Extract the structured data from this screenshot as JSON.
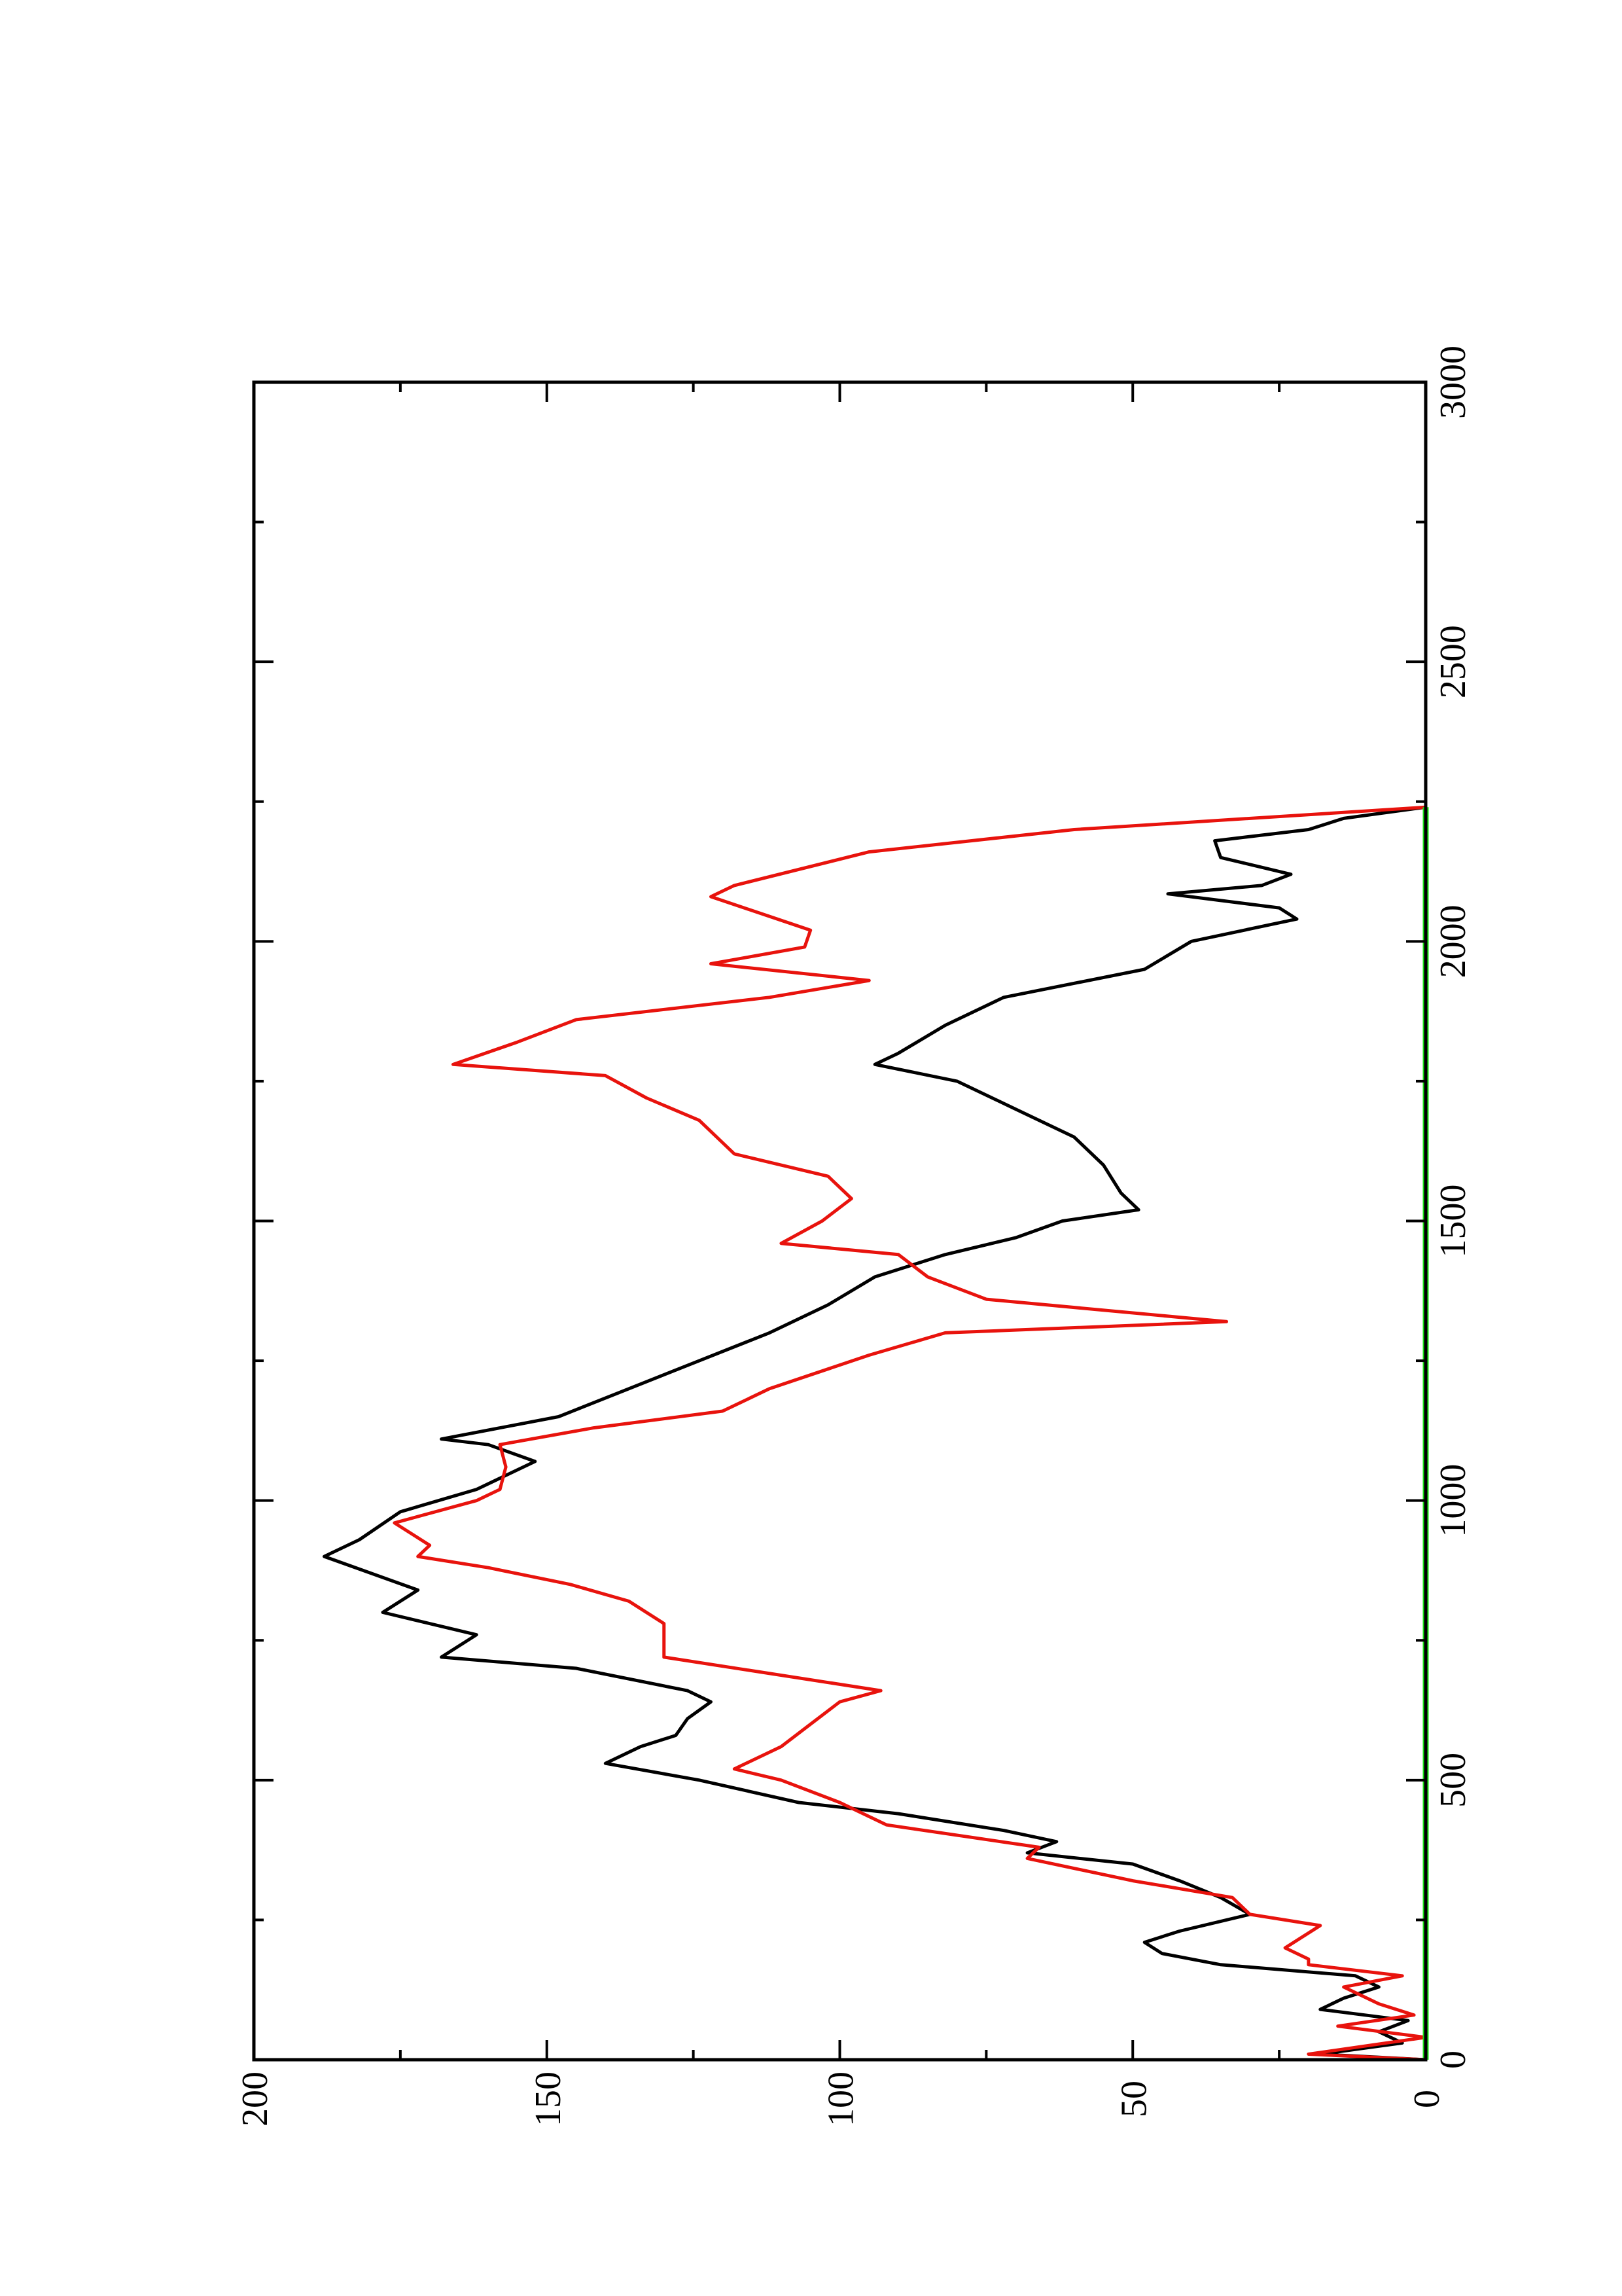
{
  "chart_data": {
    "type": "line",
    "orientation": "rotated-90-ccw",
    "xlim": [
      0,
      3000
    ],
    "ylim": [
      0,
      200
    ],
    "x_major_ticks": [
      0,
      500,
      1000,
      1500,
      2000,
      2500,
      3000
    ],
    "x_tick_labels": [
      "0",
      "500",
      "1000",
      "1500",
      "2000",
      "2500",
      "3000"
    ],
    "y_major_ticks": [
      0,
      50,
      100,
      150,
      200
    ],
    "y_tick_labels": [
      "0",
      "50",
      "100",
      "150",
      "200"
    ],
    "grid": false,
    "legend": "none",
    "series": [
      {
        "color": "#000000",
        "points": [
          [
            0,
            0
          ],
          [
            10,
            18
          ],
          [
            30,
            4
          ],
          [
            50,
            8
          ],
          [
            70,
            3
          ],
          [
            90,
            18
          ],
          [
            110,
            14
          ],
          [
            130,
            8
          ],
          [
            150,
            12
          ],
          [
            170,
            35
          ],
          [
            190,
            45
          ],
          [
            210,
            48
          ],
          [
            230,
            42
          ],
          [
            260,
            30
          ],
          [
            290,
            35
          ],
          [
            320,
            42
          ],
          [
            350,
            50
          ],
          [
            370,
            68
          ],
          [
            390,
            63
          ],
          [
            410,
            72
          ],
          [
            440,
            90
          ],
          [
            460,
            107
          ],
          [
            500,
            124
          ],
          [
            530,
            140
          ],
          [
            560,
            134
          ],
          [
            580,
            128
          ],
          [
            610,
            126
          ],
          [
            640,
            122
          ],
          [
            660,
            126
          ],
          [
            700,
            145
          ],
          [
            720,
            168
          ],
          [
            760,
            162
          ],
          [
            800,
            178
          ],
          [
            840,
            172
          ],
          [
            900,
            188
          ],
          [
            930,
            182
          ],
          [
            980,
            175
          ],
          [
            1020,
            162
          ],
          [
            1070,
            152
          ],
          [
            1100,
            160
          ],
          [
            1110,
            168
          ],
          [
            1150,
            148
          ],
          [
            1200,
            136
          ],
          [
            1250,
            124
          ],
          [
            1300,
            112
          ],
          [
            1350,
            102
          ],
          [
            1400,
            94
          ],
          [
            1440,
            82
          ],
          [
            1470,
            70
          ],
          [
            1500,
            62
          ],
          [
            1520,
            49
          ],
          [
            1550,
            52
          ],
          [
            1600,
            55
          ],
          [
            1650,
            60
          ],
          [
            1700,
            70
          ],
          [
            1750,
            80
          ],
          [
            1780,
            94
          ],
          [
            1800,
            90
          ],
          [
            1850,
            82
          ],
          [
            1900,
            72
          ],
          [
            1950,
            48
          ],
          [
            2000,
            40
          ],
          [
            2040,
            22
          ],
          [
            2060,
            25
          ],
          [
            2085,
            44
          ],
          [
            2100,
            28
          ],
          [
            2120,
            23
          ],
          [
            2150,
            35
          ],
          [
            2180,
            36
          ],
          [
            2200,
            20
          ],
          [
            2220,
            14
          ],
          [
            2240,
            0
          ]
        ]
      },
      {
        "color": "#e8130d",
        "points": [
          [
            0,
            0
          ],
          [
            10,
            20
          ],
          [
            40,
            0
          ],
          [
            60,
            15
          ],
          [
            80,
            2
          ],
          [
            100,
            8
          ],
          [
            130,
            14
          ],
          [
            150,
            4
          ],
          [
            170,
            20
          ],
          [
            180,
            20
          ],
          [
            200,
            24
          ],
          [
            240,
            18
          ],
          [
            260,
            30
          ],
          [
            290,
            33
          ],
          [
            320,
            50
          ],
          [
            360,
            68
          ],
          [
            380,
            66
          ],
          [
            420,
            92
          ],
          [
            460,
            100
          ],
          [
            500,
            110
          ],
          [
            520,
            118
          ],
          [
            560,
            110
          ],
          [
            600,
            105
          ],
          [
            640,
            100
          ],
          [
            660,
            93
          ],
          [
            720,
            130
          ],
          [
            780,
            130
          ],
          [
            820,
            136
          ],
          [
            850,
            146
          ],
          [
            880,
            160
          ],
          [
            900,
            172
          ],
          [
            920,
            170
          ],
          [
            960,
            176
          ],
          [
            1000,
            162
          ],
          [
            1020,
            158
          ],
          [
            1060,
            157
          ],
          [
            1100,
            158
          ],
          [
            1130,
            142
          ],
          [
            1160,
            120
          ],
          [
            1200,
            112
          ],
          [
            1260,
            95
          ],
          [
            1300,
            82
          ],
          [
            1320,
            34
          ],
          [
            1360,
            75
          ],
          [
            1400,
            85
          ],
          [
            1440,
            90
          ],
          [
            1460,
            110
          ],
          [
            1500,
            103
          ],
          [
            1540,
            98
          ],
          [
            1580,
            102
          ],
          [
            1620,
            118
          ],
          [
            1680,
            124
          ],
          [
            1720,
            133
          ],
          [
            1760,
            140
          ],
          [
            1780,
            166
          ],
          [
            1820,
            155
          ],
          [
            1860,
            145
          ],
          [
            1900,
            112
          ],
          [
            1930,
            95
          ],
          [
            1960,
            122
          ],
          [
            1990,
            106
          ],
          [
            2020,
            105
          ],
          [
            2080,
            122
          ],
          [
            2100,
            118
          ],
          [
            2160,
            95
          ],
          [
            2200,
            60
          ],
          [
            2240,
            0
          ]
        ]
      },
      {
        "color": "#17e411",
        "points": [
          [
            0,
            0
          ],
          [
            2240,
            0
          ]
        ]
      }
    ]
  }
}
